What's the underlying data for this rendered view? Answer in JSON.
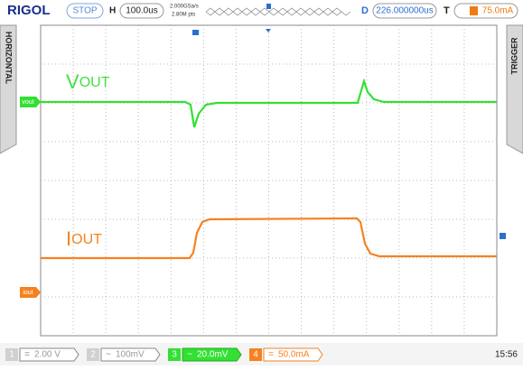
{
  "header": {
    "brand": "RIGOL",
    "status": "STOP",
    "h_label": "H",
    "timebase": "100.0us",
    "sample_rate": "2.000GSa/s",
    "points": "2.80M pts",
    "d_label": "D",
    "delay": "226.000000us",
    "t_label": "T",
    "trigger_level": "75.0mA"
  },
  "side": {
    "left": "HORIZONTAL",
    "right": "TRIGGER"
  },
  "traces": {
    "vout_main": "V",
    "vout_sub": "OUT",
    "iout_main": "I",
    "iout_sub": "OUT",
    "vout_marker": "vout",
    "iout_marker": "iout"
  },
  "footer": {
    "channels": [
      {
        "number": "1",
        "coupling": "=",
        "scale": "2.00 V"
      },
      {
        "number": "2",
        "coupling": "~",
        "scale": "100mV"
      },
      {
        "number": "3",
        "coupling": "~",
        "scale": "20.0mV"
      },
      {
        "number": "4",
        "coupling": "=",
        "scale": "50.0mA"
      }
    ],
    "time": "15:56"
  }
}
